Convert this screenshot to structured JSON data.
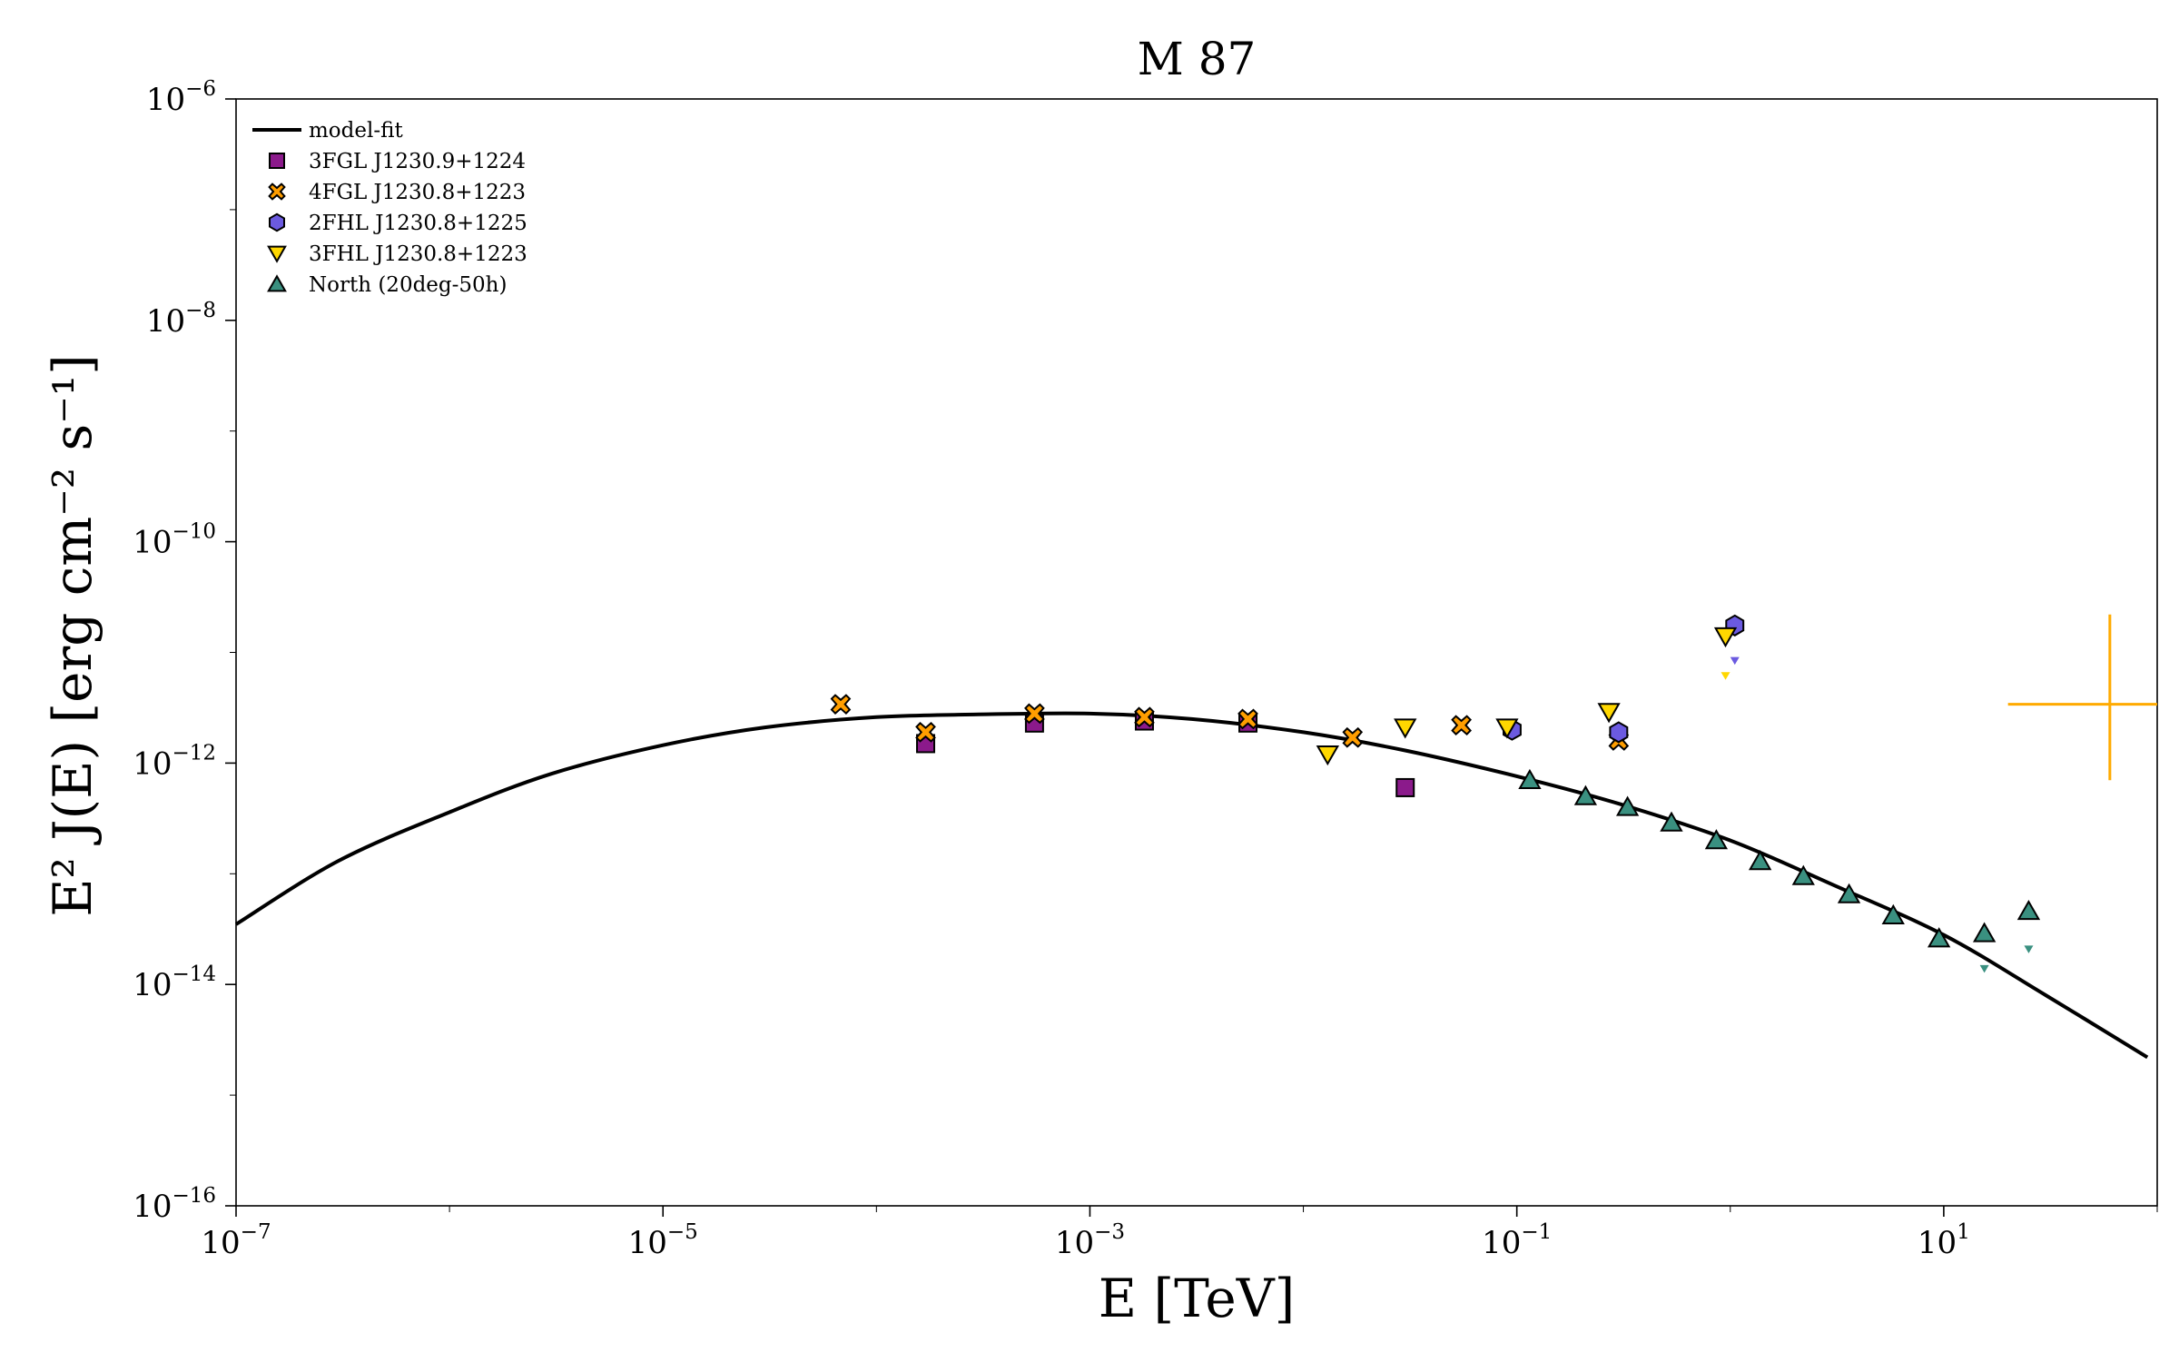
{
  "chart_data": {
    "type": "scatter",
    "title": "M 87",
    "xlabel": "E [TeV]",
    "ylabel": "E² J(E) [erg cm⁻² s⁻¹]",
    "xscale": "log",
    "yscale": "log",
    "xlim": [
      1e-07,
      100
    ],
    "ylim": [
      1e-16,
      1e-06
    ],
    "x_ticks": [
      {
        "value": 1e-07,
        "base": "10",
        "exp": "−7"
      },
      {
        "value": 1e-05,
        "base": "10",
        "exp": "−5"
      },
      {
        "value": 0.001,
        "base": "10",
        "exp": "−3"
      },
      {
        "value": 0.1,
        "base": "10",
        "exp": "−1"
      },
      {
        "value": 10,
        "base": "10",
        "exp": "1"
      }
    ],
    "y_ticks": [
      {
        "value": 1e-06,
        "base": "10",
        "exp": "−6"
      },
      {
        "value": 1e-08,
        "base": "10",
        "exp": "−8"
      },
      {
        "value": 1e-10,
        "base": "10",
        "exp": "−10"
      },
      {
        "value": 1e-12,
        "base": "10",
        "exp": "−12"
      },
      {
        "value": 1e-14,
        "base": "10",
        "exp": "−14"
      },
      {
        "value": 1e-16,
        "base": "10",
        "exp": "−16"
      }
    ],
    "grid": false,
    "legend_position": "top-left",
    "model_fit": {
      "name": "model-fit",
      "color": "#000000",
      "x": [
        1e-07,
        3e-07,
        1e-06,
        3e-06,
        1e-05,
        3e-05,
        0.0001,
        0.0003,
        0.001,
        0.003,
        0.01,
        0.03,
        0.1,
        0.3,
        1,
        3,
        10,
        30,
        90
      ],
      "y": [
        3.5e-14,
        1.3e-13,
        3.6e-13,
        8e-13,
        1.45e-12,
        2.1e-12,
        2.6e-12,
        2.75e-12,
        2.8e-12,
        2.5e-12,
        1.9e-12,
        1.3e-12,
        7.6e-13,
        4.3e-13,
        2e-13,
        8e-14,
        2.8e-14,
        8e-15,
        2.2e-15
      ]
    },
    "series": [
      {
        "name": "3FGL J1230.9+1224",
        "marker": "square",
        "color": "#8b1a8b",
        "x": [
          0.00017,
          0.00055,
          0.0018,
          0.0055,
          0.03
        ],
        "y": [
          1.5e-12,
          2.3e-12,
          2.4e-12,
          2.3e-12,
          6e-13
        ]
      },
      {
        "name": "4FGL J1230.8+1223",
        "marker": "x",
        "color": "#ff9e00",
        "x": [
          6.8e-05,
          0.00017,
          0.00055,
          0.0018,
          0.0055,
          0.017,
          0.055,
          0.3
        ],
        "y": [
          3.4e-12,
          1.9e-12,
          2.8e-12,
          2.6e-12,
          2.5e-12,
          1.7e-12,
          2.2e-12,
          1.6e-12
        ]
      },
      {
        "name": "2FHL J1230.8+1225",
        "marker": "hexagon",
        "color": "#6b5ae0",
        "x": [
          0.095,
          0.3,
          1.05
        ],
        "y": [
          2e-12,
          1.9e-12,
          1.75e-11
        ],
        "upper_limits": {
          "x": [
            1.05
          ],
          "y": [
            8.5e-12
          ]
        }
      },
      {
        "name": "3FHL J1230.8+1223",
        "marker": "triangle-down",
        "color": "#ffd700",
        "x": [
          0.013,
          0.03,
          0.09,
          0.27,
          0.95
        ],
        "y": [
          1.2e-12,
          2.1e-12,
          2.1e-12,
          2.9e-12,
          1.4e-11
        ],
        "upper_limits": {
          "x": [
            0.95
          ],
          "y": [
            6.2e-12
          ]
        }
      },
      {
        "name": "North (20deg-50h)",
        "marker": "triangle-up",
        "color": "#3a9080",
        "x": [
          0.115,
          0.21,
          0.33,
          0.53,
          0.86,
          1.38,
          2.2,
          3.6,
          5.8,
          9.5,
          15.5,
          25
        ],
        "y": [
          7e-13,
          5e-13,
          4e-13,
          2.9e-13,
          2e-13,
          1.3e-13,
          9.5e-14,
          6.5e-14,
          4.2e-14,
          2.6e-14,
          2.9e-14,
          4.6e-14
        ],
        "upper_limits": {
          "x": [
            15.5,
            25
          ],
          "y": [
            1.4e-14,
            2.1e-14
          ]
        }
      }
    ],
    "annotations": [
      {
        "type": "error-cross",
        "color": "#ffaa00",
        "x": 60,
        "y": 3.4e-12,
        "x_range": [
          20,
          100
        ],
        "y_range": [
          7e-13,
          2.2e-11
        ]
      }
    ]
  }
}
